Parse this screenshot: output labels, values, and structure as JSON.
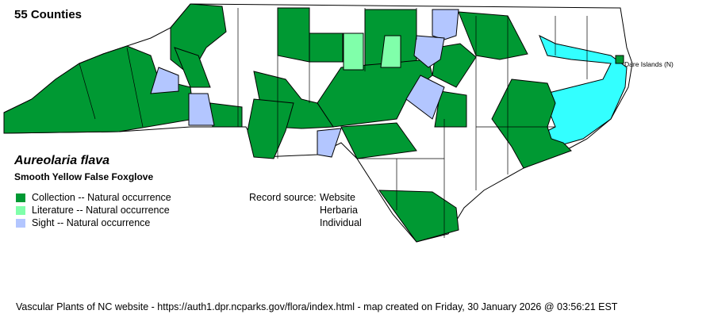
{
  "header": {
    "county_count": "55 Counties"
  },
  "species": {
    "scientific_name": "Aureolaria flava",
    "common_name": "Smooth Yellow False Foxglove"
  },
  "legend": [
    {
      "label": "Collection -- Natural occurrence",
      "color": "#009933"
    },
    {
      "label": "Literature -- Natural occurrence",
      "color": "#80ffaa"
    },
    {
      "label": "Sight -- Natural occurrence",
      "color": "#b3c6ff"
    }
  ],
  "record_source": {
    "label": "Record source:",
    "values": [
      "Website",
      "Herbaria",
      "Individual"
    ]
  },
  "map": {
    "water_color": "#33ffff",
    "island_label": "Dare Islands (N)",
    "island_color": "#009933"
  },
  "footer": "Vascular Plants of NC website - https://auth1.dpr.ncparks.gov/flora/index.html - map created on Friday, 30 January 2026 @ 03:56:21 EST"
}
